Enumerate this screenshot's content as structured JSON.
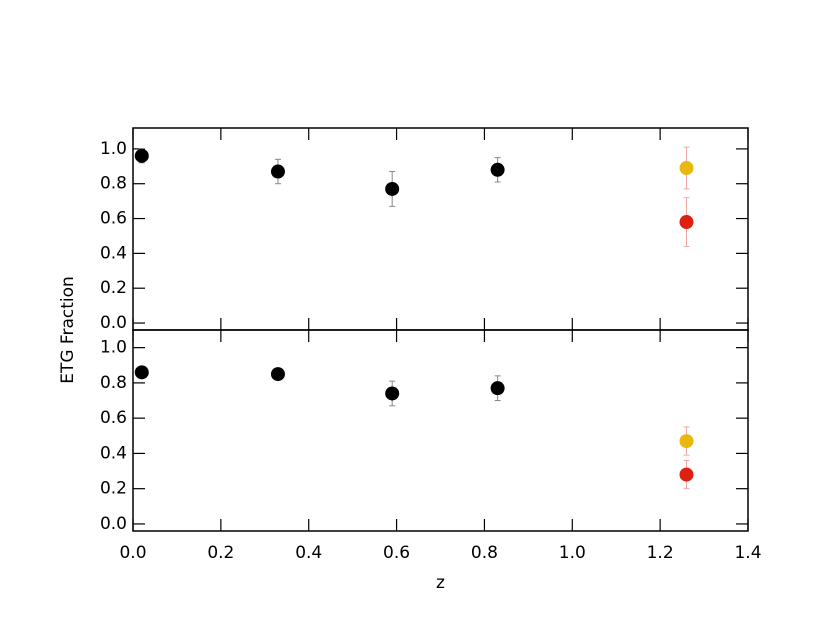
{
  "chart_data": [
    {
      "type": "scatter",
      "ylabel": "ETG Fraction",
      "xlim": [
        0,
        1.4
      ],
      "xticks": [
        {
          "value": 0,
          "label": "0.0"
        },
        {
          "value": 0.2,
          "label": "0.2"
        },
        {
          "value": 0.4,
          "label": "0.4"
        },
        {
          "value": 0.6,
          "label": "0.6"
        },
        {
          "value": 0.8,
          "label": "0.8"
        },
        {
          "value": 1,
          "label": "1.0"
        },
        {
          "value": 1.2,
          "label": "1.2"
        },
        {
          "value": 1.4,
          "label": "1.4"
        }
      ],
      "ylim": [
        -0.04,
        1.12
      ],
      "yticks": [
        {
          "value": 0,
          "label": "0.0"
        },
        {
          "value": 0.2,
          "label": "0.2"
        },
        {
          "value": 0.4,
          "label": "0.4"
        },
        {
          "value": 0.6,
          "label": "0.6"
        },
        {
          "value": 0.8,
          "label": "0.8"
        },
        {
          "value": 1,
          "label": "1.0"
        }
      ],
      "series": [
        {
          "color": "#000000",
          "error_color": "#888888",
          "x": [
            0.02,
            0.33,
            0.59,
            0.83
          ],
          "values": [
            0.96,
            0.87,
            0.77,
            0.88
          ],
          "errors": [
            0.04,
            0.07,
            0.1,
            0.07
          ]
        },
        {
          "color": "#e8b80c",
          "error_color": "#f0a8a8",
          "x": [
            1.26
          ],
          "values": [
            0.89
          ],
          "errors": [
            0.12
          ]
        },
        {
          "color": "#dd2010",
          "error_color": "#f0a8a8",
          "x": [
            1.26
          ],
          "values": [
            0.58
          ],
          "errors": [
            0.14
          ]
        }
      ]
    },
    {
      "type": "scatter",
      "xlabel": "z",
      "xlim": [
        0,
        1.4
      ],
      "xticks": [
        {
          "value": 0,
          "label": "0.0"
        },
        {
          "value": 0.2,
          "label": "0.2"
        },
        {
          "value": 0.4,
          "label": "0.4"
        },
        {
          "value": 0.6,
          "label": "0.6"
        },
        {
          "value": 0.8,
          "label": "0.8"
        },
        {
          "value": 1,
          "label": "1.0"
        },
        {
          "value": 1.2,
          "label": "1.2"
        },
        {
          "value": 1.4,
          "label": "1.4"
        }
      ],
      "ylim": [
        -0.04,
        1.1
      ],
      "yticks": [
        {
          "value": 0,
          "label": "0.0"
        },
        {
          "value": 0.2,
          "label": "0.2"
        },
        {
          "value": 0.4,
          "label": "0.4"
        },
        {
          "value": 0.6,
          "label": "0.6"
        },
        {
          "value": 0.8,
          "label": "0.8"
        },
        {
          "value": 1,
          "label": "1.0"
        }
      ],
      "series": [
        {
          "color": "#000000",
          "error_color": "#888888",
          "x": [
            0.02,
            0.33,
            0.59,
            0.83
          ],
          "values": [
            0.86,
            0.85,
            0.74,
            0.77
          ],
          "errors": [
            0.03,
            0.03,
            0.07,
            0.07
          ]
        },
        {
          "color": "#e8b80c",
          "error_color": "#f0a8a8",
          "x": [
            1.26
          ],
          "values": [
            0.47
          ],
          "errors": [
            0.08
          ]
        },
        {
          "color": "#dd2010",
          "error_color": "#f0a8a8",
          "x": [
            1.26
          ],
          "values": [
            0.28
          ],
          "errors": [
            0.08
          ]
        }
      ]
    }
  ]
}
